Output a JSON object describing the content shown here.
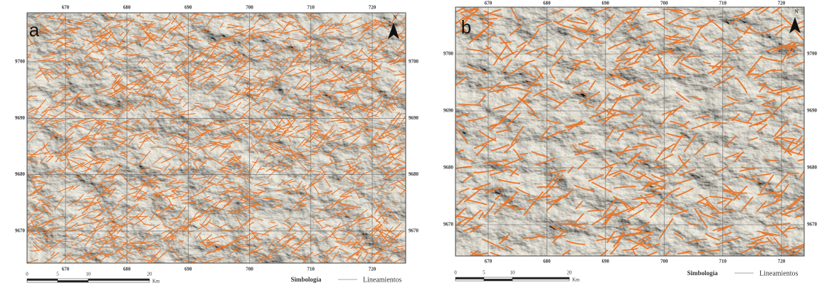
{
  "panels": [
    {
      "label": "a",
      "north": "N",
      "eastings": [
        670,
        680,
        690,
        700,
        710,
        720
      ],
      "northings": [
        9700,
        9690,
        9680,
        9670
      ],
      "scale": {
        "ticks": [
          0,
          5,
          10,
          20
        ],
        "unit": "Km"
      },
      "legend": {
        "title": "Simbología",
        "item": "Lineamientos"
      }
    },
    {
      "label": "b",
      "north": "N",
      "eastings": [
        670,
        680,
        690,
        700,
        710,
        720
      ],
      "northings": [
        9700,
        9690,
        9680,
        9670
      ],
      "scale": {
        "ticks": [
          0,
          5,
          10,
          20
        ],
        "unit": "Km"
      },
      "legend": {
        "title": "Simbología",
        "item": "Lineamientos"
      }
    }
  ]
}
